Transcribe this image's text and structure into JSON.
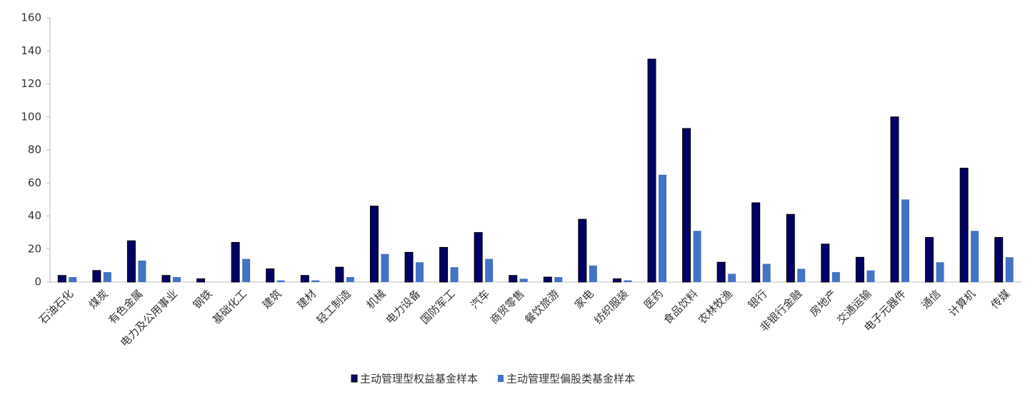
{
  "chart_data": {
    "type": "bar",
    "categories": [
      "石油石化",
      "煤炭",
      "有色金属",
      "电力及公用事业",
      "钢铁",
      "基础化工",
      "建筑",
      "建材",
      "轻工制造",
      "机械",
      "电力设备",
      "国防军工",
      "汽车",
      "商贸零售",
      "餐饮旅游",
      "家电",
      "纺织服装",
      "医药",
      "食品饮料",
      "农林牧渔",
      "银行",
      "非银行金融",
      "房地产",
      "交通运输",
      "电子元器件",
      "通信",
      "计算机",
      "传媒"
    ],
    "series": [
      {
        "name": "主动管理型权益基金样本",
        "color": "#000066",
        "values": [
          4,
          7,
          25,
          4,
          2,
          24,
          8,
          4,
          9,
          46,
          18,
          21,
          30,
          4,
          3,
          38,
          2,
          135,
          93,
          12,
          48,
          41,
          23,
          15,
          100,
          27,
          69,
          27
        ]
      },
      {
        "name": "主动管理型偏股类基金样本",
        "color": "#4472c4",
        "values": [
          3,
          6,
          13,
          3,
          0,
          14,
          1,
          1,
          3,
          17,
          12,
          9,
          14,
          2,
          3,
          10,
          1,
          65,
          31,
          5,
          11,
          8,
          6,
          7,
          50,
          12,
          31,
          15
        ]
      }
    ],
    "ylim": [
      0,
      160
    ],
    "yticks": [
      0,
      20,
      40,
      60,
      80,
      100,
      120,
      140,
      160
    ],
    "grid": false,
    "legend": "bottom"
  }
}
